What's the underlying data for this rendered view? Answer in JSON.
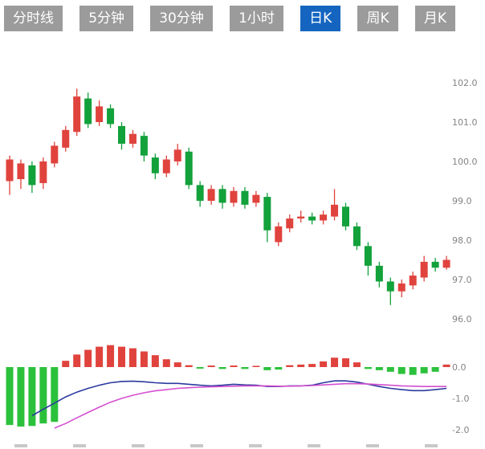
{
  "tabs": [
    {
      "id": "time-line",
      "label": "分时线",
      "active": false
    },
    {
      "id": "5min",
      "label": "5分钟",
      "active": false
    },
    {
      "id": "30min",
      "label": "30分钟",
      "active": false
    },
    {
      "id": "1hour",
      "label": "1小时",
      "active": false
    },
    {
      "id": "daily-k",
      "label": "日K",
      "active": true
    },
    {
      "id": "weekly-k",
      "label": "周K",
      "active": false
    },
    {
      "id": "monthly-k",
      "label": "月K",
      "active": false
    }
  ],
  "colors": {
    "up": "#e0433d",
    "down": "#12a13b",
    "hist_up": "#e0433d",
    "hist_down": "#2cc13c",
    "dif_line": "#2b3a9e",
    "dea_line": "#d44fd0",
    "tab_bg": "#9b9b9b",
    "tab_active_bg": "#1565c0",
    "tab_text": "#ffffff",
    "axis_text": "#848484",
    "x_tick": "#c8c8c8"
  },
  "chart_data": [
    {
      "type": "candlestick",
      "title": "",
      "xlabel": "",
      "ylabel": "",
      "ylim": [
        95.8,
        102.6
      ],
      "y_ticks": [
        102.0,
        101.0,
        100.0,
        99.0,
        98.0,
        97.0,
        96.0
      ],
      "x_tick_marks": 8,
      "grid": false,
      "legend": "none",
      "candle_format": "[open, close, high, low]",
      "candles": [
        [
          99.5,
          100.05,
          100.15,
          99.15
        ],
        [
          99.55,
          99.95,
          100.05,
          99.3
        ],
        [
          99.9,
          99.4,
          100.0,
          99.2
        ],
        [
          99.45,
          100.0,
          100.1,
          99.3
        ],
        [
          99.95,
          100.4,
          100.5,
          99.85
        ],
        [
          100.35,
          100.8,
          100.9,
          100.25
        ],
        [
          100.75,
          101.65,
          101.85,
          100.65
        ],
        [
          101.6,
          100.95,
          101.75,
          100.85
        ],
        [
          101.0,
          101.4,
          101.55,
          100.9
        ],
        [
          101.35,
          100.95,
          101.45,
          100.85
        ],
        [
          100.9,
          100.45,
          101.0,
          100.3
        ],
        [
          100.45,
          100.7,
          100.8,
          100.35
        ],
        [
          100.65,
          100.15,
          100.75,
          100.0
        ],
        [
          100.1,
          99.7,
          100.2,
          99.55
        ],
        [
          99.7,
          100.05,
          100.15,
          99.6
        ],
        [
          100.0,
          100.3,
          100.45,
          99.9
        ],
        [
          100.25,
          99.4,
          100.35,
          99.3
        ],
        [
          99.4,
          99.0,
          99.5,
          98.85
        ],
        [
          99.0,
          99.3,
          99.4,
          98.9
        ],
        [
          99.3,
          98.95,
          99.4,
          98.8
        ],
        [
          98.95,
          99.25,
          99.35,
          98.85
        ],
        [
          99.25,
          98.9,
          99.35,
          98.8
        ],
        [
          98.95,
          99.15,
          99.25,
          98.85
        ],
        [
          99.1,
          98.25,
          99.2,
          97.95
        ],
        [
          97.95,
          98.35,
          98.45,
          97.85
        ],
        [
          98.3,
          98.55,
          98.65,
          98.2
        ],
        [
          98.55,
          98.6,
          98.75,
          98.45
        ],
        [
          98.6,
          98.5,
          98.7,
          98.4
        ],
        [
          98.5,
          98.65,
          98.75,
          98.4
        ],
        [
          98.6,
          98.9,
          99.3,
          98.5
        ],
        [
          98.85,
          98.35,
          98.95,
          98.25
        ],
        [
          98.35,
          97.85,
          98.45,
          97.75
        ],
        [
          97.85,
          97.35,
          97.95,
          97.1
        ],
        [
          97.35,
          96.95,
          97.45,
          96.8
        ],
        [
          96.95,
          96.7,
          97.05,
          96.35
        ],
        [
          96.7,
          96.9,
          97.0,
          96.55
        ],
        [
          96.85,
          97.1,
          97.2,
          96.75
        ],
        [
          97.05,
          97.45,
          97.6,
          96.95
        ],
        [
          97.45,
          97.3,
          97.55,
          97.2
        ],
        [
          97.3,
          97.5,
          97.6,
          97.25
        ]
      ]
    },
    {
      "type": "bar",
      "subtype": "macd-panel",
      "ylim": [
        -2.2,
        0.9
      ],
      "y_ticks": [
        0.0,
        -1.0,
        -2.0
      ],
      "histogram": [
        -1.85,
        -1.9,
        -1.88,
        -1.8,
        -1.75,
        0.2,
        0.4,
        0.55,
        0.65,
        0.7,
        0.65,
        0.6,
        0.5,
        0.38,
        0.25,
        0.15,
        0.06,
        -0.05,
        0.05,
        -0.06,
        0.05,
        -0.06,
        0.04,
        -0.1,
        -0.08,
        0.06,
        0.08,
        0.1,
        0.18,
        0.3,
        0.28,
        0.15,
        -0.06,
        -0.1,
        -0.15,
        -0.22,
        -0.25,
        -0.2,
        -0.15,
        0.08
      ],
      "series": [
        {
          "name": "blue-line",
          "values": [
            null,
            null,
            -1.55,
            -1.35,
            -1.15,
            -0.95,
            -0.8,
            -0.68,
            -0.58,
            -0.5,
            -0.46,
            -0.45,
            -0.47,
            -0.5,
            -0.52,
            -0.52,
            -0.55,
            -0.58,
            -0.6,
            -0.58,
            -0.55,
            -0.57,
            -0.58,
            -0.62,
            -0.62,
            -0.6,
            -0.6,
            -0.58,
            -0.5,
            -0.44,
            -0.44,
            -0.48,
            -0.55,
            -0.62,
            -0.68,
            -0.72,
            -0.75,
            -0.75,
            -0.72,
            -0.68
          ]
        },
        {
          "name": "magenta-line",
          "values": [
            null,
            null,
            null,
            null,
            -1.95,
            -1.8,
            -1.62,
            -1.45,
            -1.28,
            -1.12,
            -1.0,
            -0.9,
            -0.82,
            -0.76,
            -0.72,
            -0.68,
            -0.66,
            -0.64,
            -0.63,
            -0.62,
            -0.61,
            -0.6,
            -0.6,
            -0.6,
            -0.61,
            -0.61,
            -0.6,
            -0.59,
            -0.57,
            -0.55,
            -0.53,
            -0.53,
            -0.54,
            -0.56,
            -0.58,
            -0.6,
            -0.61,
            -0.62,
            -0.62,
            -0.62
          ]
        }
      ]
    }
  ]
}
